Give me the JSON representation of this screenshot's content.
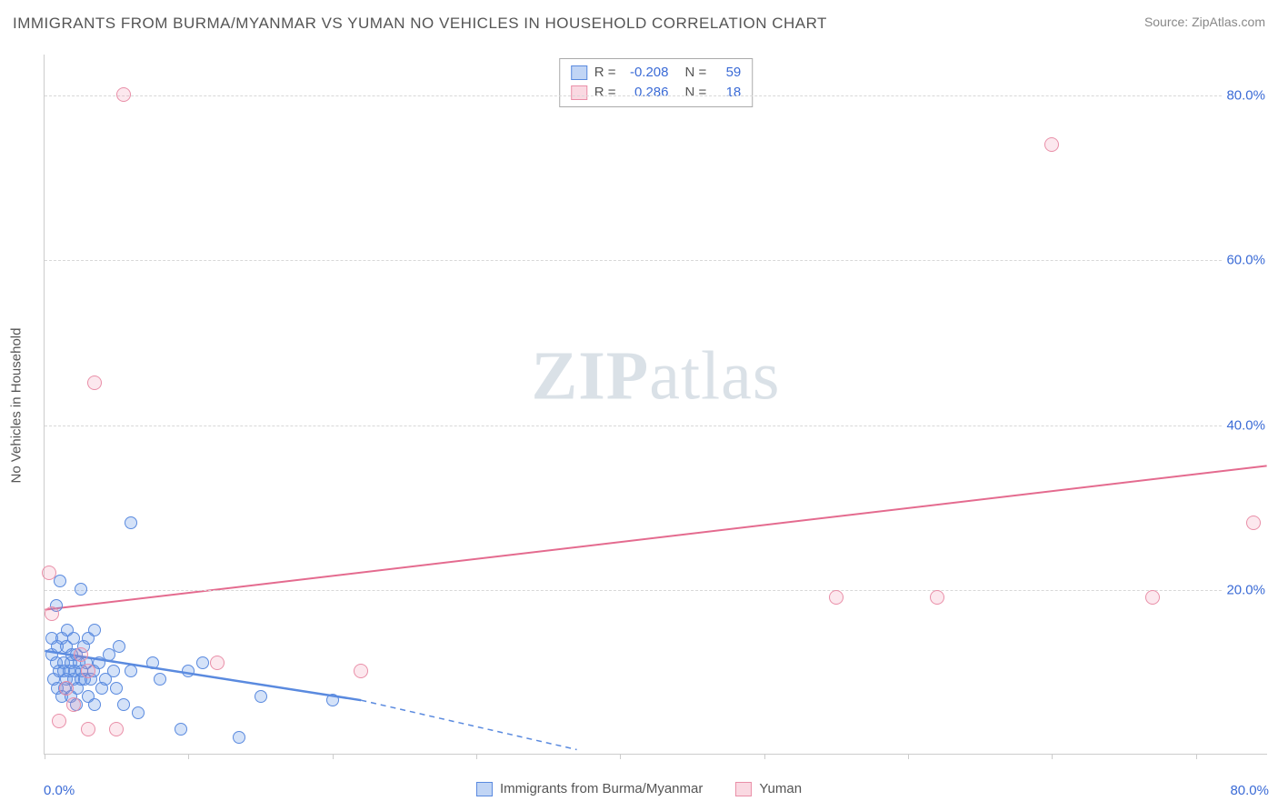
{
  "title": "IMMIGRANTS FROM BURMA/MYANMAR VS YUMAN NO VEHICLES IN HOUSEHOLD CORRELATION CHART",
  "source": "Source: ZipAtlas.com",
  "y_axis_label": "No Vehicles in Household",
  "watermark_bold": "ZIP",
  "watermark_rest": "atlas",
  "chart": {
    "type": "scatter",
    "background_color": "#ffffff",
    "grid_color": "#d8d8d8",
    "axis_color": "#cccccc",
    "tick_label_color": "#3b6bd6",
    "text_color": "#555555",
    "xlim": [
      0,
      85
    ],
    "ylim": [
      0,
      85
    ],
    "y_ticks": [
      {
        "v": 20,
        "label": "20.0%"
      },
      {
        "v": 40,
        "label": "40.0%"
      },
      {
        "v": 60,
        "label": "60.0%"
      },
      {
        "v": 80,
        "label": "80.0%"
      }
    ],
    "x_tick_positions": [
      0,
      10,
      20,
      30,
      40,
      50,
      60,
      70,
      80
    ],
    "x_label_min": "0.0%",
    "x_label_max": "80.0%",
    "series": [
      {
        "name": "Immigrants from Burma/Myanmar",
        "color": "#5a8adf",
        "fill": "rgba(100,150,230,0.35)",
        "marker_size": 14,
        "R": "-0.208",
        "N": "59",
        "trend": {
          "x1": 0,
          "y1": 12.5,
          "x2": 22,
          "y2": 6.5,
          "solid_until_x": 22,
          "dash_to_x": 37,
          "dash_to_y": 0.5,
          "width": 2.5
        },
        "points": [
          [
            0.5,
            12
          ],
          [
            0.5,
            14
          ],
          [
            0.6,
            9
          ],
          [
            0.8,
            11
          ],
          [
            0.8,
            18
          ],
          [
            0.9,
            8
          ],
          [
            0.9,
            13
          ],
          [
            1.0,
            10
          ],
          [
            1.1,
            21
          ],
          [
            1.2,
            14
          ],
          [
            1.2,
            7
          ],
          [
            1.3,
            10
          ],
          [
            1.3,
            11
          ],
          [
            1.4,
            8
          ],
          [
            1.5,
            13
          ],
          [
            1.5,
            9
          ],
          [
            1.6,
            15
          ],
          [
            1.7,
            10
          ],
          [
            1.8,
            11
          ],
          [
            1.8,
            7
          ],
          [
            1.9,
            12
          ],
          [
            2.0,
            9
          ],
          [
            2.0,
            14
          ],
          [
            2.1,
            10
          ],
          [
            2.2,
            6
          ],
          [
            2.2,
            12
          ],
          [
            2.3,
            8
          ],
          [
            2.4,
            11
          ],
          [
            2.5,
            9
          ],
          [
            2.5,
            20
          ],
          [
            2.6,
            10
          ],
          [
            2.7,
            13
          ],
          [
            2.8,
            9
          ],
          [
            2.9,
            11
          ],
          [
            3.0,
            7
          ],
          [
            3.0,
            14
          ],
          [
            3.2,
            9
          ],
          [
            3.4,
            10
          ],
          [
            3.5,
            6
          ],
          [
            3.5,
            15
          ],
          [
            3.8,
            11
          ],
          [
            4.0,
            8
          ],
          [
            4.2,
            9
          ],
          [
            4.5,
            12
          ],
          [
            4.8,
            10
          ],
          [
            5.0,
            8
          ],
          [
            5.2,
            13
          ],
          [
            5.5,
            6
          ],
          [
            6.0,
            28
          ],
          [
            6.0,
            10
          ],
          [
            6.5,
            5
          ],
          [
            7.5,
            11
          ],
          [
            8.0,
            9
          ],
          [
            9.5,
            3
          ],
          [
            10.0,
            10
          ],
          [
            11.0,
            11
          ],
          [
            13.5,
            2
          ],
          [
            15.0,
            7
          ],
          [
            20.0,
            6.5
          ]
        ]
      },
      {
        "name": "Yuman",
        "color": "#e46b8f",
        "fill": "rgba(240,130,160,0.25)",
        "marker_size": 16,
        "R": "0.286",
        "N": "18",
        "trend": {
          "x1": 0,
          "y1": 17.5,
          "x2": 85,
          "y2": 35,
          "width": 2
        },
        "points": [
          [
            0.3,
            22
          ],
          [
            0.5,
            17
          ],
          [
            1.0,
            4
          ],
          [
            1.5,
            8
          ],
          [
            2.0,
            6
          ],
          [
            2.5,
            12
          ],
          [
            3.0,
            10
          ],
          [
            3.0,
            3
          ],
          [
            3.5,
            45
          ],
          [
            5.0,
            3
          ],
          [
            5.5,
            80
          ],
          [
            12.0,
            11
          ],
          [
            22.0,
            10
          ],
          [
            55.0,
            19
          ],
          [
            62.0,
            19
          ],
          [
            70.0,
            74
          ],
          [
            77.0,
            19
          ],
          [
            84.0,
            28
          ]
        ]
      }
    ]
  },
  "legend_top": [
    {
      "series_idx": 0,
      "R_label": "R =",
      "N_label": "N ="
    },
    {
      "series_idx": 1,
      "R_label": "R =",
      "N_label": "N ="
    }
  ]
}
